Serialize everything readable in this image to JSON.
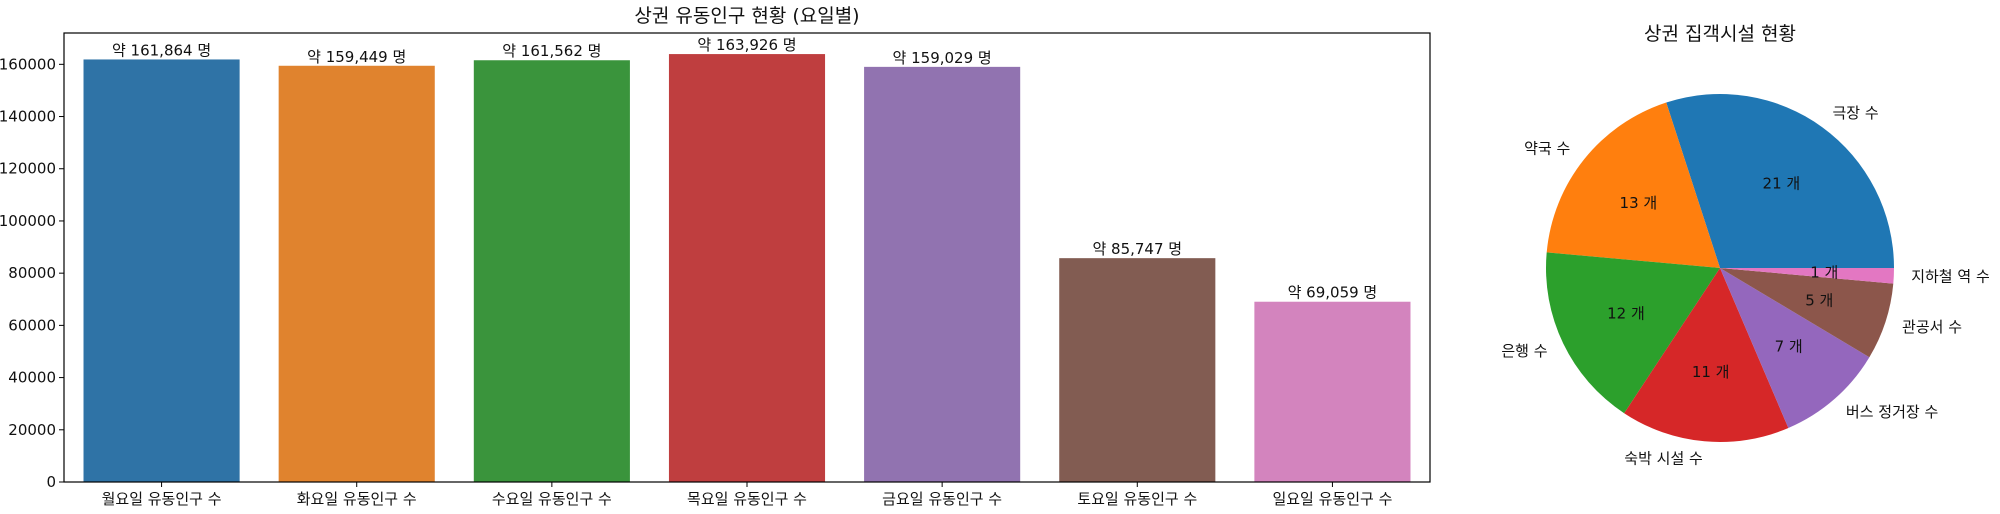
{
  "chart_data": [
    {
      "type": "bar",
      "title": "상권 유동인구 현황 (요일별)",
      "xlabel": "",
      "ylabel": "",
      "categories": [
        "월요일 유동인구 수",
        "화요일 유동인구 수",
        "수요일 유동인구 수",
        "목요일 유동인구 수",
        "금요일 유동인구 수",
        "토요일 유동인구 수",
        "일요일 유동인구 수"
      ],
      "values": [
        161864,
        159449,
        161562,
        163926,
        159029,
        85747,
        69059
      ],
      "data_labels": [
        "약 161,864 명",
        "약 159,449 명",
        "약 161,562 명",
        "약 163,926 명",
        "약 159,029 명",
        "약 85,747 명",
        "약 69,059 명"
      ],
      "colors": [
        "#2f73a6",
        "#e0832e",
        "#3a943c",
        "#bf3e3f",
        "#9173b0",
        "#825c52",
        "#d384be"
      ],
      "ylim": [
        0,
        172000
      ],
      "yticks": [
        0,
        20000,
        40000,
        60000,
        80000,
        100000,
        120000,
        140000,
        160000
      ],
      "ytick_labels": [
        "0",
        "20000",
        "40000",
        "60000",
        "80000",
        "100000",
        "120000",
        "140000",
        "160000"
      ],
      "grid": false,
      "legend": "none"
    },
    {
      "type": "pie",
      "title": "상권 집객시설 현황",
      "categories": [
        "극장 수",
        "약국 수",
        "은행 수",
        "숙박 시설 수",
        "버스 정거장 수",
        "관공서 수",
        "지하철 역 수"
      ],
      "values": [
        21,
        13,
        12,
        11,
        7,
        5,
        1
      ],
      "value_labels": [
        "21 개",
        "13 개",
        "12 개",
        "11 개",
        "7 개",
        "5 개",
        "1 개"
      ],
      "colors": [
        "#1f77b4",
        "#ff7f0e",
        "#2ca02c",
        "#d62728",
        "#9467bd",
        "#8c564b",
        "#e377c2"
      ],
      "start_angle_deg": 0,
      "direction": "counterclockwise",
      "legend": "none"
    }
  ]
}
